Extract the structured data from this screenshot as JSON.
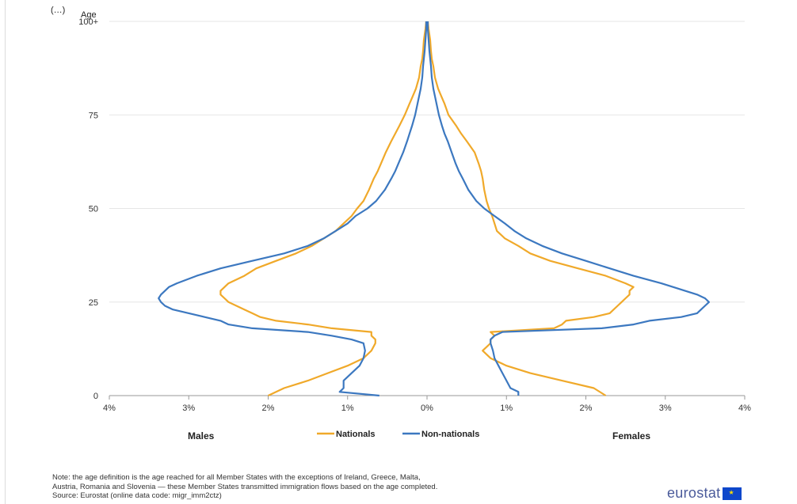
{
  "chart_data": {
    "type": "line",
    "title": "",
    "xlabel": "",
    "ylabel": "Age",
    "y_top_cutoff_label": "(…)",
    "ylim": [
      0,
      100
    ],
    "xlim": [
      -4,
      4
    ],
    "x_ticks": [
      {
        "value": -4,
        "label": "4%"
      },
      {
        "value": -3,
        "label": "3%"
      },
      {
        "value": -2,
        "label": "2%"
      },
      {
        "value": -1,
        "label": "1%"
      },
      {
        "value": 0,
        "label": "0%"
      },
      {
        "value": 1,
        "label": "1%"
      },
      {
        "value": 2,
        "label": "2%"
      },
      {
        "value": 3,
        "label": "3%"
      },
      {
        "value": 4,
        "label": "4%"
      }
    ],
    "y_ticks": [
      {
        "value": 0,
        "label": "0"
      },
      {
        "value": 25,
        "label": "25"
      },
      {
        "value": 50,
        "label": "50"
      },
      {
        "value": 75,
        "label": "75"
      },
      {
        "value": 100,
        "label": "100+"
      }
    ],
    "grid": "horizontal",
    "legend_position": "bottom-center",
    "side_labels": {
      "left": "Males",
      "right": "Females"
    },
    "series": [
      {
        "name": "Nationals",
        "color": "#f0a92a",
        "ages": [
          0,
          2,
          4,
          6,
          8,
          10,
          12,
          14,
          15,
          16,
          17,
          18,
          19,
          20,
          21,
          22,
          23,
          24,
          25,
          26,
          27,
          28,
          29,
          30,
          32,
          34,
          36,
          38,
          40,
          42,
          44,
          46,
          48,
          50,
          52,
          55,
          58,
          60,
          62,
          65,
          68,
          70,
          72,
          75,
          78,
          80,
          82,
          85,
          88,
          90,
          92,
          95,
          98,
          100
        ],
        "males": [
          -2.0,
          -1.8,
          -1.5,
          -1.25,
          -1.0,
          -0.8,
          -0.7,
          -0.65,
          -0.65,
          -0.7,
          -0.7,
          -1.2,
          -1.5,
          -1.9,
          -2.1,
          -2.2,
          -2.3,
          -2.4,
          -2.5,
          -2.55,
          -2.6,
          -2.6,
          -2.55,
          -2.5,
          -2.3,
          -2.15,
          -1.9,
          -1.65,
          -1.45,
          -1.3,
          -1.15,
          -1.05,
          -0.95,
          -0.88,
          -0.8,
          -0.73,
          -0.67,
          -0.62,
          -0.58,
          -0.52,
          -0.45,
          -0.4,
          -0.35,
          -0.28,
          -0.22,
          -0.18,
          -0.14,
          -0.1,
          -0.08,
          -0.06,
          -0.05,
          -0.04,
          -0.02,
          -0.01
        ],
        "females": [
          2.25,
          2.1,
          1.7,
          1.3,
          1.0,
          0.8,
          0.7,
          0.8,
          0.8,
          0.85,
          0.8,
          1.6,
          1.7,
          1.75,
          2.1,
          2.3,
          2.35,
          2.4,
          2.45,
          2.5,
          2.55,
          2.55,
          2.6,
          2.5,
          2.25,
          1.9,
          1.55,
          1.3,
          1.15,
          0.98,
          0.88,
          0.85,
          0.82,
          0.78,
          0.75,
          0.72,
          0.7,
          0.68,
          0.65,
          0.6,
          0.5,
          0.43,
          0.37,
          0.27,
          0.22,
          0.18,
          0.14,
          0.1,
          0.08,
          0.06,
          0.05,
          0.04,
          0.02,
          0.01
        ]
      },
      {
        "name": "Non-nationals",
        "color": "#3c78c0",
        "ages": [
          0,
          1,
          2,
          4,
          6,
          8,
          10,
          12,
          14,
          15,
          16,
          17,
          18,
          19,
          20,
          21,
          22,
          23,
          24,
          25,
          26,
          27,
          28,
          29,
          30,
          32,
          34,
          36,
          38,
          40,
          42,
          44,
          46,
          48,
          50,
          52,
          55,
          58,
          60,
          62,
          65,
          68,
          70,
          72,
          75,
          78,
          80,
          82,
          85,
          88,
          90,
          92,
          95,
          98,
          100
        ],
        "males": [
          -0.6,
          -1.1,
          -1.05,
          -1.05,
          -0.95,
          -0.85,
          -0.8,
          -0.78,
          -0.8,
          -0.95,
          -1.2,
          -1.5,
          -2.2,
          -2.5,
          -2.6,
          -2.8,
          -3.0,
          -3.2,
          -3.3,
          -3.35,
          -3.38,
          -3.35,
          -3.3,
          -3.25,
          -3.15,
          -2.9,
          -2.6,
          -2.2,
          -1.8,
          -1.5,
          -1.3,
          -1.15,
          -1.0,
          -0.9,
          -0.75,
          -0.64,
          -0.53,
          -0.45,
          -0.4,
          -0.36,
          -0.3,
          -0.25,
          -0.22,
          -0.19,
          -0.15,
          -0.12,
          -0.1,
          -0.08,
          -0.06,
          -0.05,
          -0.04,
          -0.03,
          -0.02,
          -0.01,
          -0.01
        ],
        "females": [
          1.15,
          1.15,
          1.05,
          1.0,
          0.95,
          0.9,
          0.85,
          0.83,
          0.8,
          0.8,
          0.85,
          0.95,
          2.2,
          2.6,
          2.8,
          3.2,
          3.4,
          3.45,
          3.5,
          3.55,
          3.5,
          3.4,
          3.25,
          3.1,
          2.95,
          2.6,
          2.3,
          2.0,
          1.7,
          1.45,
          1.25,
          1.1,
          0.98,
          0.85,
          0.72,
          0.62,
          0.52,
          0.45,
          0.4,
          0.36,
          0.31,
          0.26,
          0.22,
          0.19,
          0.15,
          0.12,
          0.1,
          0.08,
          0.06,
          0.05,
          0.04,
          0.03,
          0.02,
          0.01,
          0.01
        ]
      }
    ]
  },
  "note": {
    "line1": "Note: the age definition is the age reached for all Member States with the exceptions of Ireland, Greece, Malta,",
    "line2": "Austria, Romania and Slovenia — these Member States transmitted immigration flows based on the age completed.",
    "line3": "Source: Eurostat (online data code: migr_imm2ctz)"
  },
  "logo": {
    "text": "eurostat",
    "flag_color": "#0e47cb",
    "star_color": "#ffde00"
  }
}
